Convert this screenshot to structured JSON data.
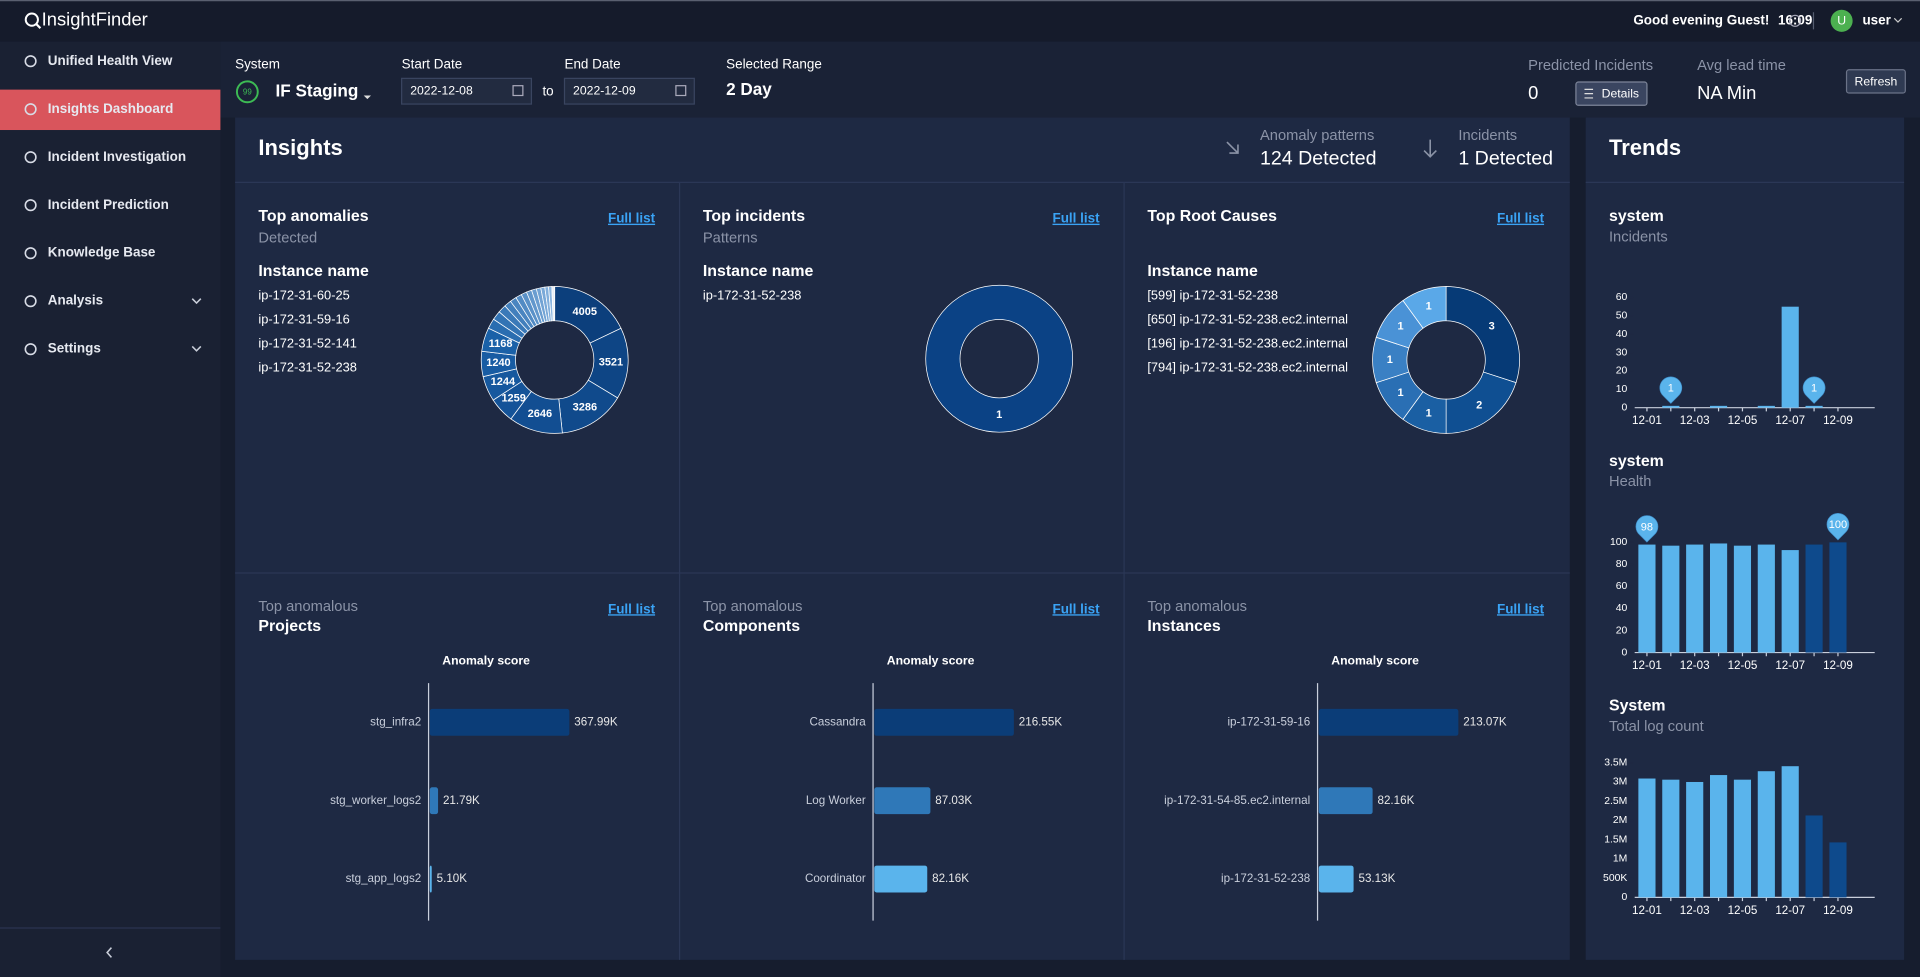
{
  "header": {
    "brand": "InsightFinder",
    "greeting": "Good evening Guest!",
    "time": "16:09",
    "avatar": "U",
    "user": "user"
  },
  "sidebar": {
    "items": [
      "Unified Health View",
      "Insights Dashboard",
      "Incident Investigation",
      "Incident Prediction",
      "Knowledge Base",
      "Analysis",
      "Settings"
    ],
    "active": 1
  },
  "toolbar": {
    "system_label": "System",
    "system_score": 99,
    "system": "IF Staging",
    "start_label": "Start Date",
    "start": "2022-12-08",
    "to": "to",
    "end_label": "End Date",
    "end": "2022-12-09",
    "range_label": "Selected Range",
    "range": "2 Day",
    "predicted_label": "Predicted Incidents",
    "predicted": 0,
    "details": "Details",
    "lead_label": "Avg lead time",
    "lead": "NA Min",
    "refresh": "Refresh"
  },
  "insights": {
    "title": "Insights",
    "anomaly_label": "Anomaly patterns",
    "anomaly_value": "124 Detected",
    "incident_label": "Incidents",
    "incident_value": "1 Detected"
  },
  "top_panels": [
    {
      "title": "Top anomalies",
      "subtitle": "Detected",
      "link": "Full list",
      "list_title": "Instance name",
      "items": [
        "ip-172-31-60-25",
        "ip-172-31-59-16",
        "ip-172-31-52-141",
        "ip-172-31-52-238"
      ],
      "chart_data": {
        "type": "donut",
        "values": [
          4005,
          3521,
          3286,
          2646,
          1259,
          1244,
          1240,
          1168,
          500,
          450,
          400,
          350,
          320,
          300,
          280,
          260,
          240,
          220,
          200,
          180,
          160,
          140
        ],
        "colors": [
          "#0c3f7c",
          "#0e4585",
          "#104a8c",
          "#124e92",
          "#145398",
          "#16589e",
          "#185ca3",
          "#1a61a8",
          "#2a6db0",
          "#3273b4",
          "#3a79b8",
          "#427fbc",
          "#4a85c0",
          "#528bc4",
          "#5a91c8",
          "#6297cc",
          "#6a9dd0",
          "#72a3d4",
          "#7aa9d8",
          "#82afdc",
          "#8ab5e0",
          "#e8eef6"
        ]
      }
    },
    {
      "title": "Top incidents",
      "subtitle": "Patterns",
      "link": "Full list",
      "list_title": "Instance name",
      "items": [
        "ip-172-31-52-238"
      ],
      "chart_data": {
        "type": "donut",
        "values": [
          1
        ],
        "colors": [
          "#0b4285"
        ]
      }
    },
    {
      "title": "Top Root Causes",
      "link": "Full list",
      "list_title": "Instance name",
      "items": [
        "[599] ip-172-31-52-238",
        "[650] ip-172-31-52-238.ec2.internal",
        "[196] ip-172-31-52-238.ec2.internal",
        "[794] ip-172-31-52-238.ec2.internal"
      ],
      "chart_data": {
        "type": "donut",
        "values": [
          3,
          2,
          1,
          1,
          1,
          1,
          1
        ],
        "colors": [
          "#063a76",
          "#0f4f92",
          "#1a5fa3",
          "#2a6fb4",
          "#3a80c4",
          "#4a92d6",
          "#5aa8e8"
        ]
      }
    }
  ],
  "bottom_panels": [
    {
      "kicker": "Top anomalous",
      "title": "Projects",
      "link": "Full list",
      "chart_data": {
        "type": "hbar",
        "title": "Anomaly score",
        "categories": [
          "stg_infra2",
          "stg_worker_logs2",
          "stg_app_logs2"
        ],
        "values": [
          367990,
          21790,
          5100
        ],
        "value_labels": [
          "367.99K",
          "21.79K",
          "5.10K"
        ],
        "colors": [
          "#0b3d78",
          "#2f78b8",
          "#5ab4ec"
        ]
      }
    },
    {
      "kicker": "Top anomalous",
      "title": "Components",
      "link": "Full list",
      "chart_data": {
        "type": "hbar",
        "title": "Anomaly score",
        "categories": [
          "Cassandra",
          "Log Worker",
          "Coordinator"
        ],
        "values": [
          216550,
          87030,
          82160
        ],
        "value_labels": [
          "216.55K",
          "87.03K",
          "82.16K"
        ],
        "colors": [
          "#0b3d78",
          "#2f78b8",
          "#5ab4ec"
        ]
      }
    },
    {
      "kicker": "Top anomalous",
      "title": "Instances",
      "link": "Full list",
      "chart_data": {
        "type": "hbar",
        "title": "Anomaly score",
        "categories": [
          "ip-172-31-59-16",
          "ip-172-31-54-85.ec2.internal",
          "ip-172-31-52-238"
        ],
        "values": [
          213070,
          82160,
          53130
        ],
        "value_labels": [
          "213.07K",
          "82.16K",
          "53.13K"
        ],
        "colors": [
          "#0b3d78",
          "#2f78b8",
          "#5ab4ec"
        ]
      }
    }
  ],
  "trends": {
    "title": "Trends",
    "charts": [
      {
        "title": "system",
        "subtitle": "Incidents",
        "chart_data": {
          "type": "bar",
          "categories": [
            "12-01",
            null,
            "12-03",
            null,
            "12-05",
            null,
            "12-07",
            null,
            "12-09"
          ],
          "values": [
            0,
            1,
            0,
            1,
            0,
            1,
            55,
            1,
            0
          ],
          "markers": [
            null,
            1,
            null,
            null,
            null,
            null,
            null,
            1,
            null
          ],
          "colors": [
            "#5ab4ec",
            "#5ab4ec",
            "#5ab4ec",
            "#5ab4ec",
            "#5ab4ec",
            "#5ab4ec",
            "#5ab4ec",
            "#5ab4ec",
            "#5ab4ec"
          ],
          "ylim": [
            0,
            60
          ],
          "yticks": [
            0,
            10,
            20,
            30,
            40,
            50,
            60
          ]
        }
      },
      {
        "title": "system",
        "subtitle": "Health",
        "chart_data": {
          "type": "bar",
          "categories": [
            "12-01",
            null,
            "12-03",
            null,
            "12-05",
            null,
            "12-07",
            null,
            "12-09"
          ],
          "values": [
            98,
            97,
            98,
            99,
            97,
            98,
            93,
            98,
            100
          ],
          "markers": [
            98,
            null,
            null,
            null,
            null,
            null,
            null,
            null,
            100
          ],
          "colors": [
            "#5ab4ec",
            "#5ab4ec",
            "#5ab4ec",
            "#5ab4ec",
            "#5ab4ec",
            "#5ab4ec",
            "#5ab4ec",
            "#0e4a8c",
            "#0e4a8c"
          ],
          "ylim": [
            0,
            100
          ],
          "yticks": [
            0,
            20,
            40,
            60,
            80,
            100
          ]
        }
      },
      {
        "title": "System",
        "subtitle": "Total log count",
        "chart_data": {
          "type": "bar",
          "categories": [
            "12-01",
            null,
            "12-03",
            null,
            "12-05",
            null,
            "12-07",
            null,
            "12-09"
          ],
          "values": [
            3090000,
            3060000,
            3000000,
            3180000,
            3060000,
            3280000,
            3410000,
            2130000,
            1430000
          ],
          "colors": [
            "#5ab4ec",
            "#5ab4ec",
            "#5ab4ec",
            "#5ab4ec",
            "#5ab4ec",
            "#5ab4ec",
            "#5ab4ec",
            "#0e4a8c",
            "#0e4a8c"
          ],
          "ylim": [
            0,
            3500000
          ],
          "yticks": [
            0,
            {
              "value": 500000,
              "label": "500K"
            },
            {
              "value": 1000000,
              "label": "1M"
            },
            {
              "value": 1500000,
              "label": "1.5M"
            },
            {
              "value": 2000000,
              "label": "2M"
            },
            {
              "value": 2500000,
              "label": "2.5M"
            },
            {
              "value": 3000000,
              "label": "3M"
            },
            {
              "value": 3500000,
              "label": "3.5M"
            }
          ]
        }
      }
    ]
  }
}
